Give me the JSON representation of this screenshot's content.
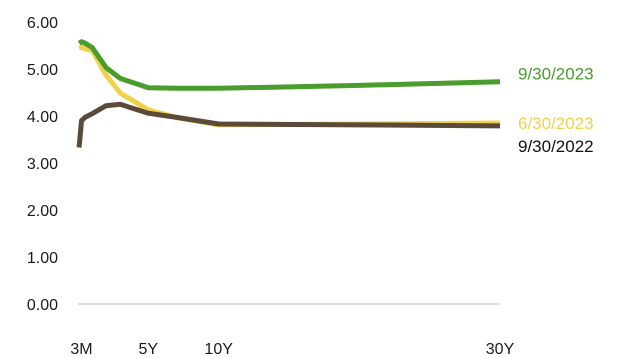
{
  "chart_data": {
    "type": "line",
    "title": "",
    "xlabel": "",
    "ylabel": "",
    "ylim": [
      0,
      6
    ],
    "y_ticks": [
      "0.00",
      "1.00",
      "2.00",
      "3.00",
      "4.00",
      "5.00",
      "6.00"
    ],
    "x_ticks": [
      {
        "label": "3M",
        "x": 0.25
      },
      {
        "label": "5Y",
        "x": 5
      },
      {
        "label": "10Y",
        "x": 10
      },
      {
        "label": "30Y",
        "x": 30
      }
    ],
    "x_range": [
      0,
      30
    ],
    "grid": false,
    "series": [
      {
        "name": "9/30/2023",
        "color": "#4a9c2d",
        "x": [
          0.08,
          0.25,
          0.5,
          1,
          2,
          3,
          5,
          7,
          10,
          20,
          30
        ],
        "values": [
          5.55,
          5.58,
          5.55,
          5.46,
          5.03,
          4.8,
          4.6,
          4.59,
          4.59,
          4.65,
          4.73
        ]
      },
      {
        "name": "6/30/2023",
        "color": "#f0d24a",
        "x": [
          0.08,
          0.25,
          0.5,
          1,
          2,
          3,
          5,
          7,
          10,
          20,
          30
        ],
        "values": [
          5.45,
          5.46,
          5.43,
          5.4,
          4.87,
          4.49,
          4.13,
          3.97,
          3.81,
          3.83,
          3.85
        ]
      },
      {
        "name": "9/30/2022",
        "color": "#5a4a3a",
        "x": [
          0.08,
          0.25,
          0.5,
          1,
          2,
          3,
          5,
          7,
          10,
          20,
          30
        ],
        "values": [
          3.33,
          3.9,
          3.97,
          4.05,
          4.22,
          4.25,
          4.06,
          3.97,
          3.83,
          3.81,
          3.79
        ]
      }
    ]
  }
}
